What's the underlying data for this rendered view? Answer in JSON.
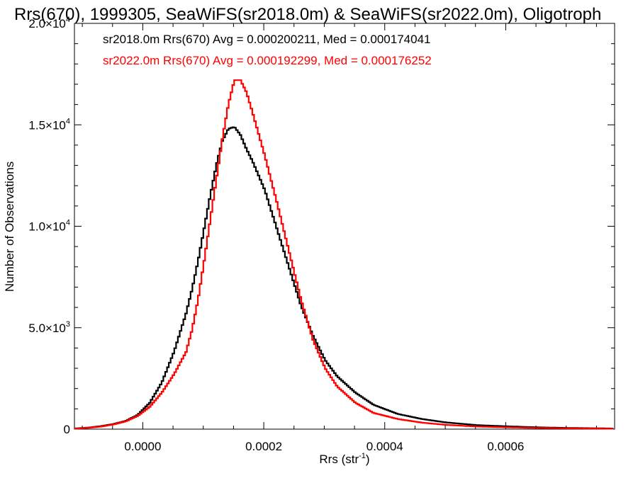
{
  "chart_data": {
    "type": "line",
    "title": "Rrs(670), 1999305, SeaWiFS(sr2018.0m) & SeaWiFS(sr2022.0m), Oligotroph",
    "xlabel": "Rrs (str",
    "xlabel_sup": "-1",
    "xlabel_end": ")",
    "ylabel": "Number of Observations",
    "xlim": [
      -0.000113,
      0.00078
    ],
    "ylim": [
      0,
      20000
    ],
    "x_ticks": [
      {
        "value": 0.0,
        "label": "0.0000"
      },
      {
        "value": 0.0002,
        "label": "0.0002"
      },
      {
        "value": 0.0004,
        "label": "0.0004"
      },
      {
        "value": 0.0006,
        "label": "0.0006"
      }
    ],
    "y_ticks": [
      {
        "value": 0,
        "label": "0",
        "sup": ""
      },
      {
        "value": 5000,
        "label": "5.0×10",
        "sup": "3"
      },
      {
        "value": 10000,
        "label": "1.0×10",
        "sup": "4"
      },
      {
        "value": 15000,
        "label": "1.5×10",
        "sup": "4"
      },
      {
        "value": 20000,
        "label": "2.0×10",
        "sup": "4"
      }
    ],
    "legend_position": "top-left",
    "series": [
      {
        "name": "sr2018.0m Rrs(670) Avg = 0.000200211, Med = 0.000174041",
        "color": "#000000",
        "x": [
          -0.00011,
          -9e-05,
          -7e-05,
          -5e-05,
          -3e-05,
          -1e-05,
          1e-05,
          3e-05,
          5e-05,
          7e-05,
          8e-05,
          9e-05,
          0.0001,
          0.00011,
          0.00012,
          0.00013,
          0.00014,
          0.00015,
          0.00016,
          0.00017,
          0.00018,
          0.0002,
          0.00022,
          0.00024,
          0.00026,
          0.00028,
          0.0003,
          0.00032,
          0.00035,
          0.00038,
          0.00042,
          0.00046,
          0.0005,
          0.00055,
          0.0006,
          0.00065,
          0.0007,
          0.00078
        ],
        "y": [
          40,
          80,
          150,
          250,
          400,
          700,
          1300,
          2300,
          3800,
          5700,
          6900,
          8300,
          9900,
          11500,
          13000,
          14200,
          14800,
          14900,
          14500,
          13800,
          13200,
          11800,
          9900,
          8000,
          6100,
          4600,
          3400,
          2600,
          1800,
          1200,
          750,
          500,
          330,
          200,
          140,
          90,
          60,
          30
        ]
      },
      {
        "name": "sr2022.0m Rrs(670) Avg = 0.000192299, Med = 0.000176252",
        "color": "#ff0000",
        "x": [
          -0.00011,
          -9e-05,
          -7e-05,
          -5e-05,
          -3e-05,
          -1e-05,
          1e-05,
          3e-05,
          5e-05,
          7e-05,
          8e-05,
          9e-05,
          0.0001,
          0.00011,
          0.00012,
          0.00013,
          0.00014,
          0.00015,
          0.00016,
          0.00017,
          0.00018,
          0.0002,
          0.00022,
          0.00024,
          0.00026,
          0.00028,
          0.0003,
          0.00032,
          0.00035,
          0.00038,
          0.00042,
          0.00046,
          0.0005,
          0.00055,
          0.0006,
          0.00065,
          0.0007,
          0.00078
        ],
        "y": [
          30,
          70,
          130,
          230,
          380,
          650,
          1100,
          1800,
          2700,
          3800,
          4900,
          6400,
          8300,
          10300,
          12300,
          14300,
          16000,
          17200,
          17200,
          16600,
          15600,
          13500,
          11200,
          8800,
          6400,
          4400,
          3000,
          2100,
          1300,
          800,
          500,
          320,
          210,
          130,
          90,
          60,
          40,
          20
        ]
      }
    ]
  }
}
